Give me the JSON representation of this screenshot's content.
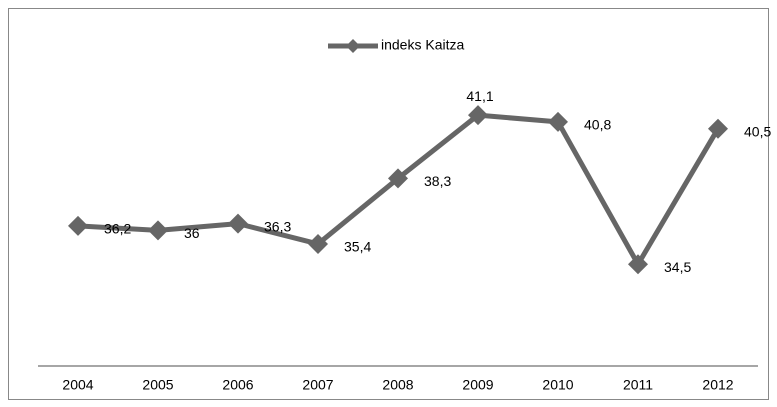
{
  "chart_data": {
    "type": "line",
    "categories": [
      "2004",
      "2005",
      "2006",
      "2007",
      "2008",
      "2009",
      "2010",
      "2011",
      "2012"
    ],
    "series": [
      {
        "name": "indeks Kaitza",
        "color": "#666666",
        "values": [
          36.2,
          36,
          36.3,
          35.4,
          38.3,
          41.1,
          40.8,
          34.5,
          40.5
        ],
        "value_labels": [
          "36,2",
          "36",
          "36,3",
          "35,4",
          "38,3",
          "41,1",
          "40,8",
          "34,5",
          "40,5"
        ]
      }
    ],
    "ylim": [
      30,
      45
    ],
    "legend": "top"
  }
}
